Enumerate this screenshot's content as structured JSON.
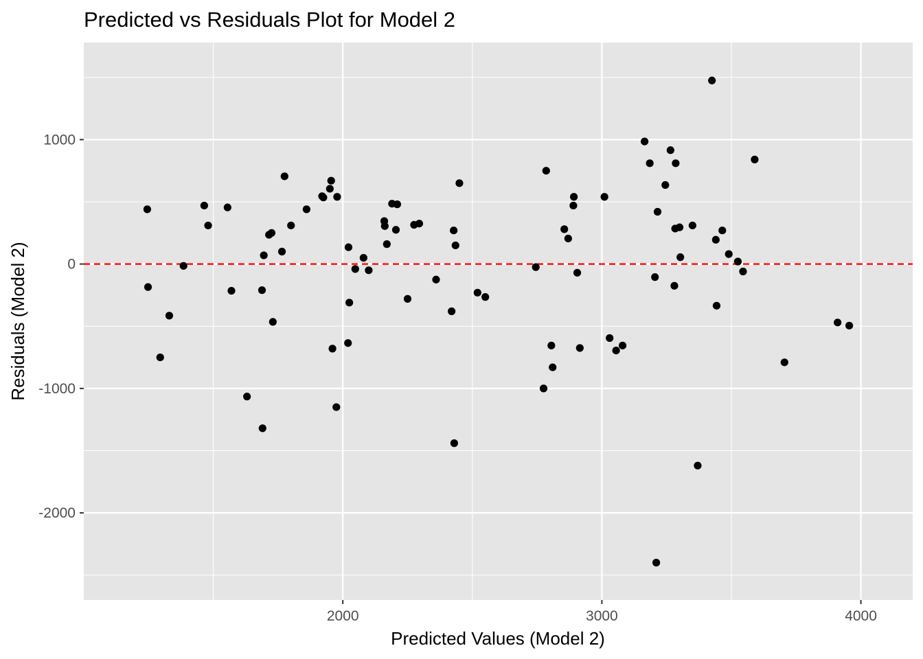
{
  "chart_data": {
    "type": "scatter",
    "title": "Predicted vs Residuals Plot for Model 2",
    "xlabel": "Predicted Values (Model 2)",
    "ylabel": "Residuals (Model 2)",
    "xlim": [
      1000,
      4200
    ],
    "ylim": [
      -2700,
      1780
    ],
    "x_ticks": [
      2000,
      3000,
      4000
    ],
    "x_tick_labels": [
      "2000",
      "3000",
      "4000"
    ],
    "y_ticks": [
      1000,
      0,
      -1000,
      -2000
    ],
    "y_tick_labels": [
      "1000",
      "0",
      "-1000",
      "-2000"
    ],
    "grid": true,
    "legend": "none",
    "reference_line": {
      "y": 0,
      "style": "dashed",
      "color": "#ff0000"
    },
    "colors": {
      "panel": "#e5e5e5",
      "grid": "#ffffff",
      "points": "#000000"
    },
    "points": [
      {
        "x": 1245,
        "y": 440
      },
      {
        "x": 1248,
        "y": -185
      },
      {
        "x": 1295,
        "y": -750
      },
      {
        "x": 1330,
        "y": -415
      },
      {
        "x": 1385,
        "y": -15
      },
      {
        "x": 1465,
        "y": 470
      },
      {
        "x": 1480,
        "y": 310
      },
      {
        "x": 1555,
        "y": 455
      },
      {
        "x": 1570,
        "y": -215
      },
      {
        "x": 1630,
        "y": -1065
      },
      {
        "x": 1690,
        "y": -1320
      },
      {
        "x": 1688,
        "y": -210
      },
      {
        "x": 1695,
        "y": 70
      },
      {
        "x": 1715,
        "y": 235
      },
      {
        "x": 1725,
        "y": 250
      },
      {
        "x": 1730,
        "y": -465
      },
      {
        "x": 1765,
        "y": 100
      },
      {
        "x": 1775,
        "y": 705
      },
      {
        "x": 1800,
        "y": 310
      },
      {
        "x": 1860,
        "y": 440
      },
      {
        "x": 1920,
        "y": 545
      },
      {
        "x": 1925,
        "y": 535
      },
      {
        "x": 1950,
        "y": 605
      },
      {
        "x": 1955,
        "y": 670
      },
      {
        "x": 1960,
        "y": -680
      },
      {
        "x": 1975,
        "y": -1150
      },
      {
        "x": 1978,
        "y": 540
      },
      {
        "x": 2020,
        "y": -635
      },
      {
        "x": 2022,
        "y": 135
      },
      {
        "x": 2025,
        "y": -310
      },
      {
        "x": 2048,
        "y": -40
      },
      {
        "x": 2080,
        "y": 50
      },
      {
        "x": 2100,
        "y": -50
      },
      {
        "x": 2160,
        "y": 345
      },
      {
        "x": 2162,
        "y": 305
      },
      {
        "x": 2170,
        "y": 160
      },
      {
        "x": 2190,
        "y": 485
      },
      {
        "x": 2205,
        "y": 275
      },
      {
        "x": 2210,
        "y": 480
      },
      {
        "x": 2250,
        "y": -280
      },
      {
        "x": 2275,
        "y": 315
      },
      {
        "x": 2295,
        "y": 325
      },
      {
        "x": 2360,
        "y": -125
      },
      {
        "x": 2420,
        "y": -380
      },
      {
        "x": 2428,
        "y": 270
      },
      {
        "x": 2430,
        "y": -1440
      },
      {
        "x": 2435,
        "y": 150
      },
      {
        "x": 2450,
        "y": 650
      },
      {
        "x": 2520,
        "y": -230
      },
      {
        "x": 2550,
        "y": -265
      },
      {
        "x": 2745,
        "y": -25
      },
      {
        "x": 2775,
        "y": -1000
      },
      {
        "x": 2785,
        "y": 750
      },
      {
        "x": 2805,
        "y": -655
      },
      {
        "x": 2810,
        "y": -830
      },
      {
        "x": 2855,
        "y": 280
      },
      {
        "x": 2870,
        "y": 205
      },
      {
        "x": 2890,
        "y": 470
      },
      {
        "x": 2892,
        "y": 540
      },
      {
        "x": 2905,
        "y": -70
      },
      {
        "x": 2915,
        "y": -675
      },
      {
        "x": 3010,
        "y": 540
      },
      {
        "x": 3030,
        "y": -595
      },
      {
        "x": 3055,
        "y": -695
      },
      {
        "x": 3080,
        "y": -655
      },
      {
        "x": 3165,
        "y": 985
      },
      {
        "x": 3185,
        "y": 810
      },
      {
        "x": 3205,
        "y": -105
      },
      {
        "x": 3210,
        "y": -2400
      },
      {
        "x": 3215,
        "y": 420
      },
      {
        "x": 3245,
        "y": 635
      },
      {
        "x": 3265,
        "y": 915
      },
      {
        "x": 3280,
        "y": -175
      },
      {
        "x": 3283,
        "y": 285
      },
      {
        "x": 3285,
        "y": 810
      },
      {
        "x": 3300,
        "y": 295
      },
      {
        "x": 3303,
        "y": 55
      },
      {
        "x": 3350,
        "y": 310
      },
      {
        "x": 3370,
        "y": -1620
      },
      {
        "x": 3425,
        "y": 1475
      },
      {
        "x": 3440,
        "y": 195
      },
      {
        "x": 3443,
        "y": -335
      },
      {
        "x": 3465,
        "y": 270
      },
      {
        "x": 3490,
        "y": 80
      },
      {
        "x": 3525,
        "y": 20
      },
      {
        "x": 3545,
        "y": -60
      },
      {
        "x": 3590,
        "y": 840
      },
      {
        "x": 3705,
        "y": -790
      },
      {
        "x": 3910,
        "y": -470
      },
      {
        "x": 3955,
        "y": -495
      }
    ]
  }
}
